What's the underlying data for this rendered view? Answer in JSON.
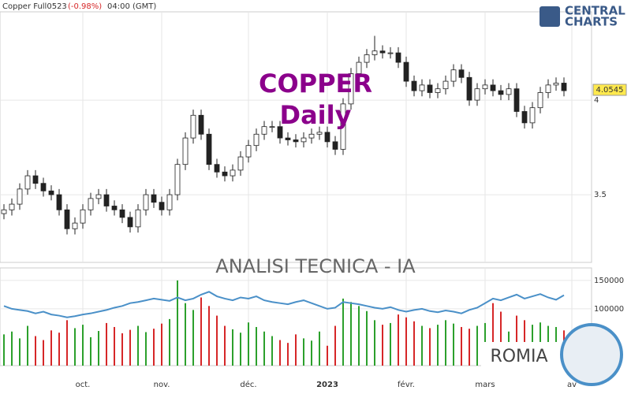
{
  "header": {
    "symbol": "Copper Full0523",
    "change": "(-0.98%)",
    "time": "04:00 (GMT)"
  },
  "logo": {
    "line1": "CENTRAL",
    "line2": "CHARTS"
  },
  "watermarks": {
    "title1": "COPPER",
    "title2": "Daily",
    "banner": "ANALISI TECNICA - IA",
    "author": "ROMIA"
  },
  "chart_data": [
    {
      "type": "candlestick",
      "up_color": "#2ca02c",
      "down_color": "#d62728",
      "xlim": [
        -0.5,
        74.5
      ],
      "xticks": [
        {
          "value": 10,
          "label": "oct."
        },
        {
          "value": 20,
          "label": "nov."
        },
        {
          "value": 31,
          "label": "déc."
        },
        {
          "value": 41,
          "label": "2023"
        },
        {
          "value": 51,
          "label": "févr."
        },
        {
          "value": 61,
          "label": "mars"
        },
        {
          "value": 72,
          "label": "av"
        }
      ],
      "ylim": [
        3.142,
        4.467
      ],
      "yticks": [
        3.5,
        4
      ],
      "grid": true,
      "last_price": 4.0545,
      "open": [
        3.4,
        3.42,
        3.45,
        3.53,
        3.6,
        3.56,
        3.52,
        3.5,
        3.42,
        3.32,
        3.35,
        3.42,
        3.48,
        3.5,
        3.44,
        3.42,
        3.38,
        3.33,
        3.42,
        3.5,
        3.46,
        3.42,
        3.5,
        3.66,
        3.8,
        3.92,
        3.82,
        3.66,
        3.62,
        3.6,
        3.63,
        3.7,
        3.76,
        3.82,
        3.86,
        3.86,
        3.8,
        3.79,
        3.78,
        3.8,
        3.82,
        3.83,
        3.78,
        3.74,
        3.98,
        4.14,
        4.2,
        4.24,
        4.26,
        4.25,
        4.25,
        4.2,
        4.1,
        4.05,
        4.08,
        4.04,
        4.06,
        4.1,
        4.16,
        4.12,
        4.0,
        4.06,
        4.08,
        4.05,
        4.03,
        4.06,
        3.94,
        3.88,
        3.96,
        4.04,
        4.08,
        4.09
      ],
      "high": [
        3.45,
        3.48,
        3.56,
        3.63,
        3.63,
        3.59,
        3.55,
        3.53,
        3.45,
        3.38,
        3.45,
        3.51,
        3.53,
        3.53,
        3.47,
        3.45,
        3.41,
        3.45,
        3.53,
        3.53,
        3.49,
        3.53,
        3.69,
        3.83,
        3.95,
        3.95,
        3.85,
        3.69,
        3.65,
        3.66,
        3.73,
        3.79,
        3.85,
        3.89,
        3.89,
        3.89,
        3.83,
        3.82,
        3.83,
        3.85,
        3.86,
        3.86,
        3.81,
        4.01,
        4.17,
        4.23,
        4.27,
        4.34,
        4.29,
        4.28,
        4.28,
        4.23,
        4.13,
        4.11,
        4.11,
        4.09,
        4.13,
        4.19,
        4.19,
        4.15,
        4.09,
        4.11,
        4.11,
        4.08,
        4.09,
        4.09,
        3.97,
        3.99,
        4.07,
        4.11,
        4.12,
        4.12
      ],
      "low": [
        3.37,
        3.39,
        3.42,
        3.5,
        3.53,
        3.49,
        3.47,
        3.39,
        3.29,
        3.29,
        3.32,
        3.39,
        3.45,
        3.41,
        3.39,
        3.35,
        3.3,
        3.3,
        3.39,
        3.43,
        3.39,
        3.39,
        3.47,
        3.63,
        3.77,
        3.79,
        3.63,
        3.59,
        3.57,
        3.57,
        3.6,
        3.67,
        3.73,
        3.79,
        3.83,
        3.77,
        3.76,
        3.75,
        3.75,
        3.77,
        3.79,
        3.75,
        3.71,
        3.71,
        3.95,
        4.11,
        4.17,
        4.21,
        4.22,
        4.22,
        4.17,
        4.07,
        4.02,
        4.02,
        4.01,
        4.01,
        4.03,
        4.07,
        4.09,
        3.97,
        3.97,
        4.03,
        4.02,
        4.0,
        4.0,
        3.91,
        3.85,
        3.85,
        3.93,
        4.01,
        4.05,
        4.02
      ],
      "close": [
        3.42,
        3.45,
        3.53,
        3.6,
        3.56,
        3.52,
        3.5,
        3.42,
        3.32,
        3.35,
        3.42,
        3.48,
        3.5,
        3.44,
        3.42,
        3.38,
        3.33,
        3.42,
        3.5,
        3.46,
        3.42,
        3.5,
        3.66,
        3.8,
        3.92,
        3.82,
        3.66,
        3.62,
        3.6,
        3.63,
        3.7,
        3.76,
        3.82,
        3.86,
        3.86,
        3.8,
        3.79,
        3.78,
        3.8,
        3.82,
        3.83,
        3.78,
        3.74,
        3.98,
        4.14,
        4.2,
        4.24,
        4.26,
        4.25,
        4.25,
        4.2,
        4.1,
        4.05,
        4.08,
        4.04,
        4.06,
        4.1,
        4.16,
        4.12,
        4.0,
        4.06,
        4.08,
        4.05,
        4.03,
        4.06,
        3.94,
        3.88,
        3.96,
        4.04,
        4.08,
        4.09,
        4.05
      ]
    },
    {
      "type": "bar",
      "ylim": [
        0,
        172000
      ],
      "yticks": [
        100000,
        150000
      ],
      "grid": true,
      "line_color": "#4a90c8",
      "values": [
        55000,
        60000,
        48000,
        70000,
        52000,
        45000,
        62000,
        58000,
        80000,
        66000,
        72000,
        50000,
        61000,
        75000,
        68000,
        57000,
        63000,
        70000,
        59000,
        65000,
        74000,
        82000,
        150000,
        110000,
        98000,
        120000,
        105000,
        88000,
        70000,
        64000,
        58000,
        76000,
        68000,
        60000,
        52000,
        45000,
        40000,
        55000,
        48000,
        44000,
        60000,
        35000,
        70000,
        118000,
        112000,
        105000,
        96000,
        80000,
        72000,
        75000,
        90000,
        85000,
        78000,
        70000,
        66000,
        72000,
        80000,
        74000,
        68000,
        65000,
        70000,
        75000,
        110000,
        95000,
        60000,
        88000,
        80000,
        72000,
        76000,
        70000,
        68000,
        62000
      ],
      "line": [
        105000,
        100000,
        98000,
        96000,
        92000,
        95000,
        90000,
        88000,
        85000,
        87000,
        90000,
        92000,
        95000,
        98000,
        102000,
        105000,
        110000,
        112000,
        115000,
        118000,
        116000,
        114000,
        120000,
        115000,
        118000,
        125000,
        130000,
        122000,
        118000,
        115000,
        120000,
        118000,
        122000,
        115000,
        112000,
        110000,
        108000,
        112000,
        115000,
        110000,
        105000,
        100000,
        102000,
        112000,
        110000,
        108000,
        105000,
        102000,
        100000,
        103000,
        98000,
        95000,
        98000,
        100000,
        96000,
        94000,
        97000,
        95000,
        92000,
        98000,
        102000,
        110000,
        118000,
        115000,
        120000,
        125000,
        118000,
        122000,
        126000,
        120000,
        116000,
        124000
      ]
    }
  ]
}
